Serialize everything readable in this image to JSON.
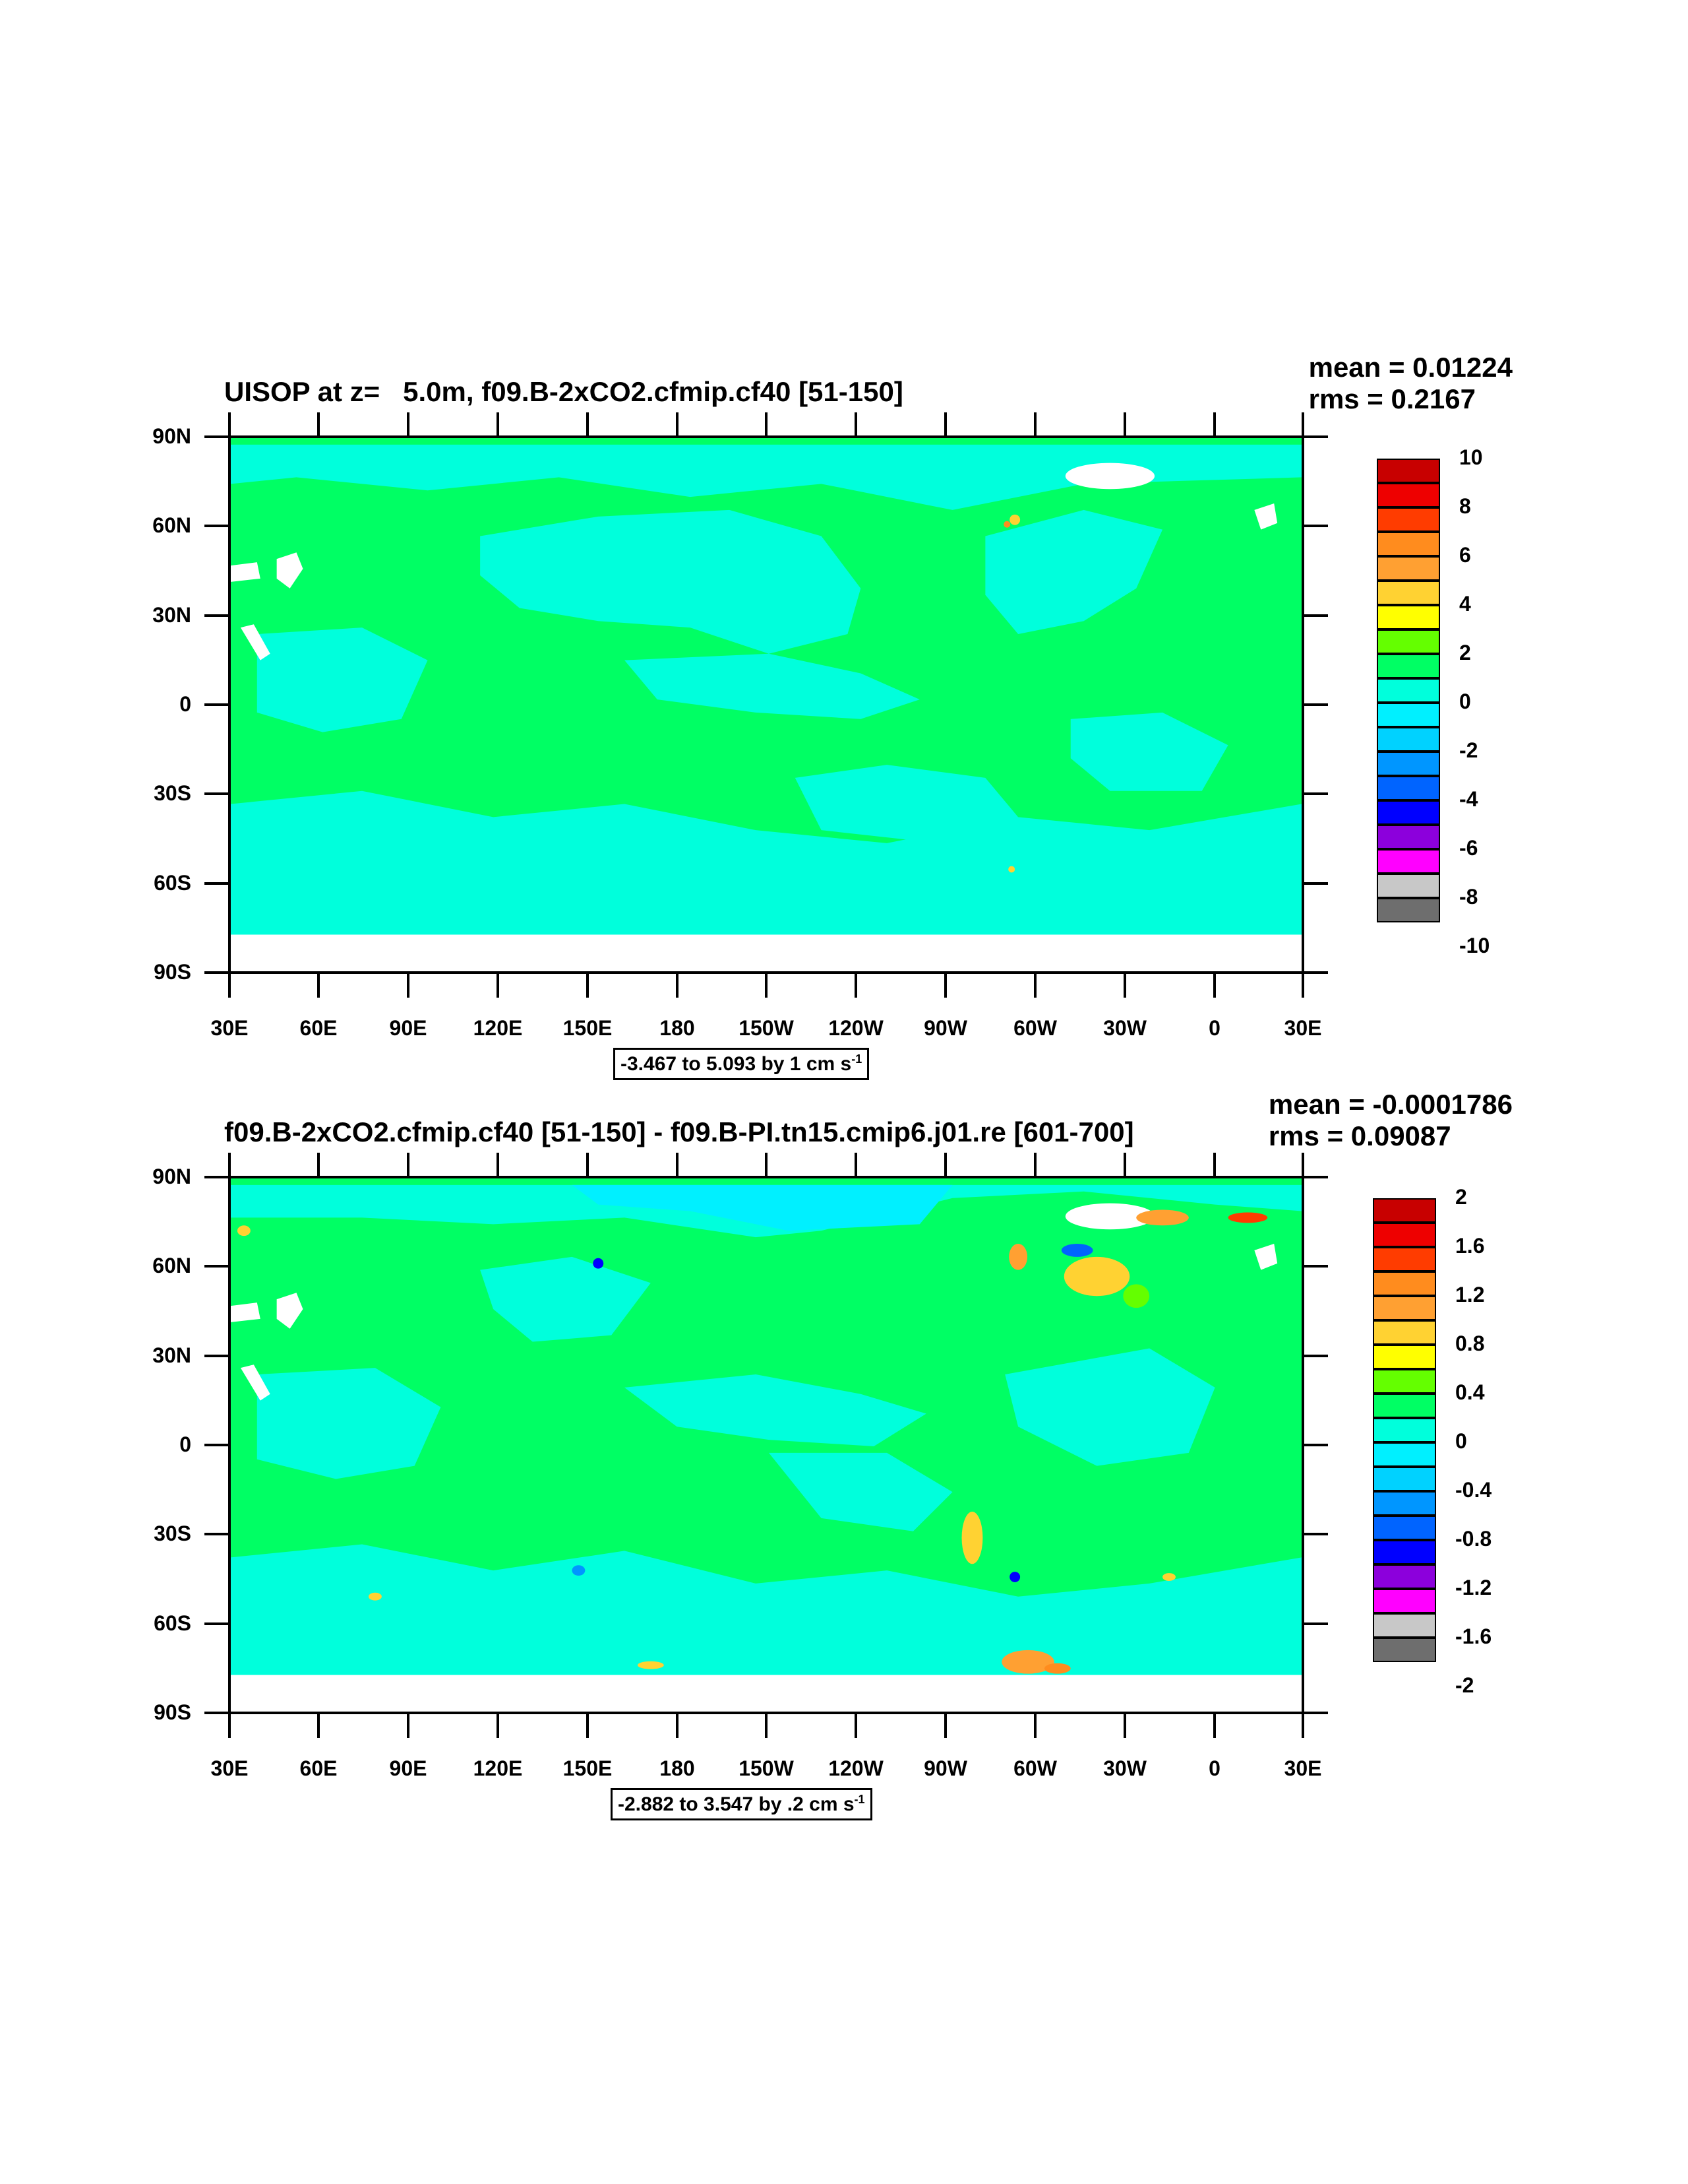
{
  "panels": [
    {
      "title": "UISOP at z=   5.0m, f09.B-2xCO2.cfmip.cf40 [51-150]",
      "mean": "mean = 0.01224",
      "rms": "rms = 0.2167",
      "range_text": "-3.467 to 5.093 by 1 cm s",
      "range_unit_sup": "-1",
      "colorbar_labels": [
        "10",
        "8",
        "6",
        "4",
        "2",
        "0",
        "-2",
        "-4",
        "-6",
        "-8",
        "-10"
      ]
    },
    {
      "title": "f09.B-2xCO2.cfmip.cf40 [51-150] - f09.B-PI.tn15.cmip6.j01.re [601-700]",
      "mean": "mean = -0.0001786",
      "rms": "rms = 0.09087",
      "range_text": "-2.882 to 3.547 by .2 cm s",
      "range_unit_sup": "-1",
      "colorbar_labels": [
        "2",
        "1.6",
        "1.2",
        "0.8",
        "0.4",
        "0",
        "-0.4",
        "-0.8",
        "-1.2",
        "-1.6",
        "-2"
      ]
    }
  ],
  "axes": {
    "y_labels": [
      "90N",
      "60N",
      "30N",
      "0",
      "30S",
      "60S",
      "90S"
    ],
    "x_labels": [
      "30E",
      "60E",
      "90E",
      "120E",
      "150E",
      "180",
      "150W",
      "120W",
      "90W",
      "60W",
      "30W",
      "0",
      "30E"
    ]
  },
  "colorbar_colors": [
    "#c80000",
    "#ee0000",
    "#ff3c00",
    "#ff8c1e",
    "#ffa032",
    "#ffd232",
    "#ffff00",
    "#64ff00",
    "#00ff64",
    "#00ffdc",
    "#00f0ff",
    "#00d2ff",
    "#0096ff",
    "#0064ff",
    "#0000ff",
    "#8c00dc",
    "#ff00ff",
    "#c8c8c8",
    "#6e6e6e"
  ],
  "map_colors": {
    "ocean_cyan": "#00ffdc",
    "ocean_green": "#00ff64",
    "land_mask": "#ffffff"
  }
}
